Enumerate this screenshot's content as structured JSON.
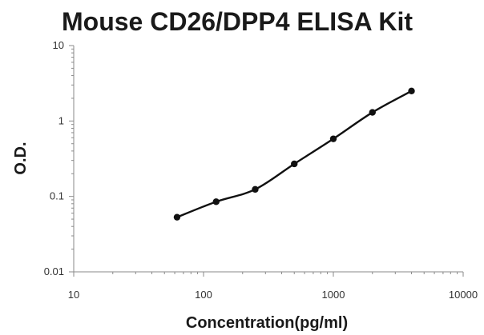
{
  "chart_data": {
    "type": "scatter",
    "title": "Mouse CD26/DPP4 ELISA Kit",
    "xlabel": "Concentration(pg/ml)",
    "ylabel": "O.D.",
    "xscale": "log",
    "yscale": "log",
    "xlim": [
      10,
      10000
    ],
    "ylim": [
      0.01,
      10
    ],
    "x_ticks": [
      "10",
      "100",
      "1000",
      "10000"
    ],
    "y_ticks": [
      "0.01",
      "0.1",
      "1",
      "10"
    ],
    "grid": false,
    "legend": "none",
    "series": [
      {
        "points": [
          {
            "x": 62.5,
            "y": 0.053
          },
          {
            "x": 125,
            "y": 0.085
          },
          {
            "x": 250,
            "y": 0.124
          },
          {
            "x": 500,
            "y": 0.27
          },
          {
            "x": 1000,
            "y": 0.58
          },
          {
            "x": 2000,
            "y": 1.3
          },
          {
            "x": 4000,
            "y": 2.5
          }
        ],
        "fit": "smooth-curve",
        "color": "#111111"
      }
    ]
  }
}
